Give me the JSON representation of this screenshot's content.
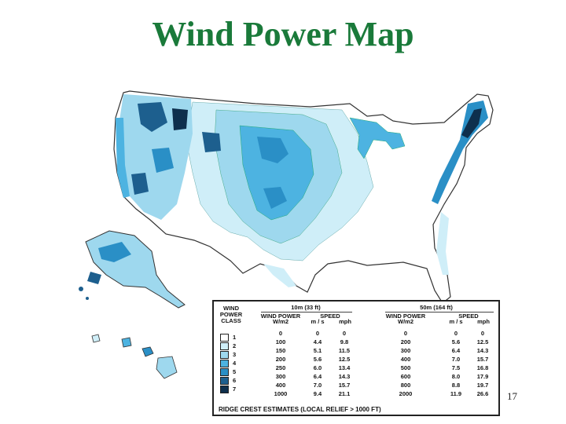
{
  "title": "Wind Power Map",
  "page_number": "17",
  "colors": {
    "class1": "#ffffff",
    "class2": "#cfeef8",
    "class3": "#9ed8ee",
    "class4": "#4db3e1",
    "class5": "#2a8fc6",
    "class6": "#1d5f8e",
    "class7": "#0e2f4d",
    "title": "#1a7a3a"
  },
  "legend": {
    "class_header": "WIND POWER CLASS",
    "group_10m": "10m (33 ft)",
    "group_50m": "50m (164 ft)",
    "wind_power": "WIND POWER",
    "wm2": "W/m2",
    "speed": "SPEED",
    "ms": "m / s",
    "mph": "mph",
    "footer": "RIDGE CREST ESTIMATES (LOCAL RELIEF > 1000 FT)",
    "boundary_10m": [
      {
        "power": "0",
        "ms": "0",
        "mph": "0"
      },
      {
        "power": "100",
        "ms": "4.4",
        "mph": "9.8"
      },
      {
        "power": "150",
        "ms": "5.1",
        "mph": "11.5"
      },
      {
        "power": "200",
        "ms": "5.6",
        "mph": "12.5"
      },
      {
        "power": "250",
        "ms": "6.0",
        "mph": "13.4"
      },
      {
        "power": "300",
        "ms": "6.4",
        "mph": "14.3"
      },
      {
        "power": "400",
        "ms": "7.0",
        "mph": "15.7"
      },
      {
        "power": "1000",
        "ms": "9.4",
        "mph": "21.1"
      }
    ],
    "boundary_50m": [
      {
        "power": "0",
        "ms": "0",
        "mph": "0"
      },
      {
        "power": "200",
        "ms": "5.6",
        "mph": "12.5"
      },
      {
        "power": "300",
        "ms": "6.4",
        "mph": "14.3"
      },
      {
        "power": "400",
        "ms": "7.0",
        "mph": "15.7"
      },
      {
        "power": "500",
        "ms": "7.5",
        "mph": "16.8"
      },
      {
        "power": "600",
        "ms": "8.0",
        "mph": "17.9"
      },
      {
        "power": "800",
        "ms": "8.8",
        "mph": "19.7"
      },
      {
        "power": "2000",
        "ms": "11.9",
        "mph": "26.6"
      }
    ],
    "classes": [
      "1",
      "2",
      "3",
      "4",
      "5",
      "6",
      "7"
    ]
  }
}
